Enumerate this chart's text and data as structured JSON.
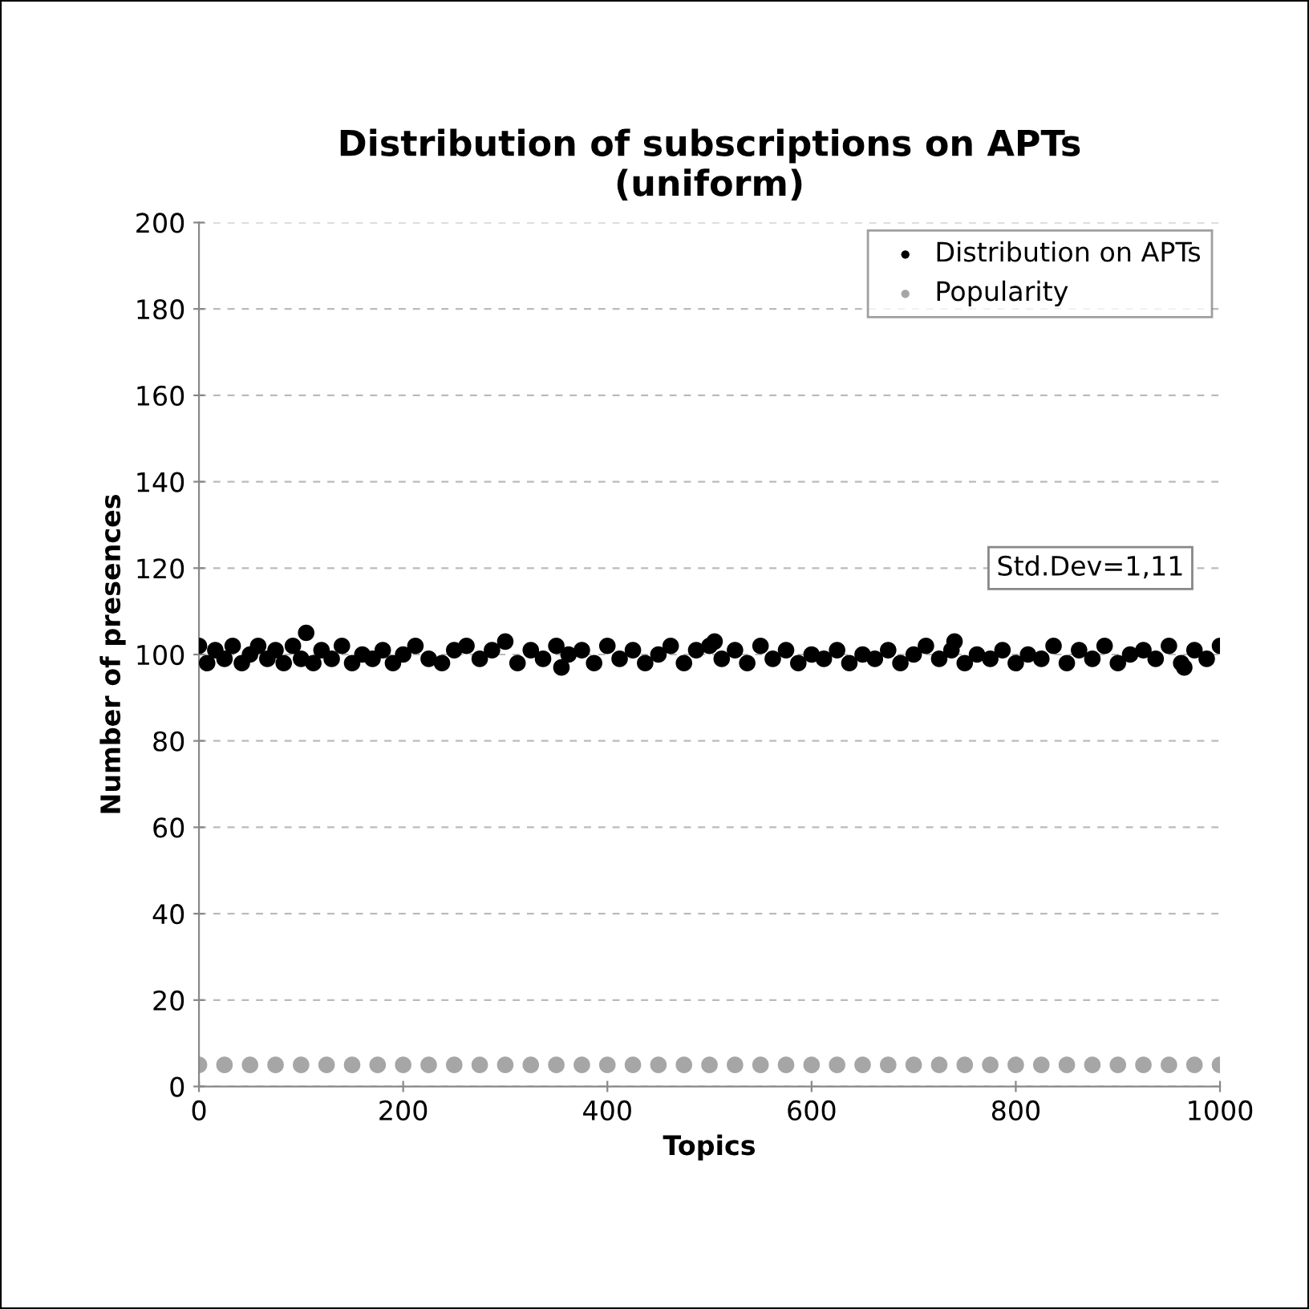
{
  "chart_data": {
    "type": "scatter",
    "title": "Distribution of subscriptions on APTs\n(uniform)",
    "xlabel": "Topics",
    "ylabel": "Number of presences",
    "xlim": [
      0,
      1000
    ],
    "xticks": [
      0,
      200,
      400,
      600,
      800,
      1000
    ],
    "ylim": [
      0,
      200
    ],
    "yticks": [
      0,
      20,
      40,
      60,
      80,
      100,
      120,
      140,
      160,
      180,
      200
    ],
    "grid": "y",
    "legend": "top right",
    "marker": "circle",
    "annotations": [
      "Std.Dev=1,11"
    ],
    "series": [
      {
        "name": "Distribution on APTs",
        "color": "#000000",
        "x": [
          0,
          8,
          16,
          25,
          33,
          42,
          50,
          58,
          67,
          75,
          83,
          92,
          100,
          105,
          112,
          120,
          130,
          140,
          150,
          160,
          170,
          180,
          190,
          200,
          212,
          225,
          238,
          250,
          262,
          275,
          287,
          300,
          312,
          325,
          337,
          350,
          355,
          362,
          375,
          387,
          400,
          412,
          425,
          437,
          450,
          462,
          475,
          487,
          500,
          505,
          512,
          525,
          537,
          550,
          562,
          575,
          587,
          600,
          612,
          625,
          637,
          650,
          662,
          675,
          687,
          700,
          712,
          725,
          737,
          740,
          750,
          762,
          775,
          787,
          800,
          812,
          825,
          837,
          850,
          862,
          875,
          887,
          900,
          912,
          925,
          937,
          950,
          962,
          965,
          975,
          987,
          1000
        ],
        "values": [
          102,
          98,
          101,
          99,
          102,
          98,
          100,
          102,
          99,
          101,
          98,
          102,
          99,
          105,
          98,
          101,
          99,
          102,
          98,
          100,
          99,
          101,
          98,
          100,
          102,
          99,
          98,
          101,
          102,
          99,
          101,
          103,
          98,
          101,
          99,
          102,
          97,
          100,
          101,
          98,
          102,
          99,
          101,
          98,
          100,
          102,
          98,
          101,
          102,
          103,
          99,
          101,
          98,
          102,
          99,
          101,
          98,
          100,
          99,
          101,
          98,
          100,
          99,
          101,
          98,
          100,
          102,
          99,
          101,
          103,
          98,
          100,
          99,
          101,
          98,
          100,
          99,
          102,
          98,
          101,
          99,
          102,
          98,
          100,
          101,
          99,
          102,
          98,
          97,
          101,
          99,
          102
        ]
      },
      {
        "name": "Popularity",
        "color": "#a6a6a6",
        "x": [
          0,
          25,
          50,
          75,
          100,
          125,
          150,
          175,
          200,
          225,
          250,
          275,
          300,
          325,
          350,
          375,
          400,
          425,
          450,
          475,
          500,
          525,
          550,
          575,
          600,
          625,
          650,
          675,
          700,
          725,
          750,
          775,
          800,
          825,
          850,
          875,
          900,
          925,
          950,
          975,
          1000
        ],
        "values": [
          5,
          5,
          5,
          5,
          5,
          5,
          5,
          5,
          5,
          5,
          5,
          5,
          5,
          5,
          5,
          5,
          5,
          5,
          5,
          5,
          5,
          5,
          5,
          5,
          5,
          5,
          5,
          5,
          5,
          5,
          5,
          5,
          5,
          5,
          5,
          5,
          5,
          5,
          5,
          5,
          5
        ]
      }
    ]
  }
}
